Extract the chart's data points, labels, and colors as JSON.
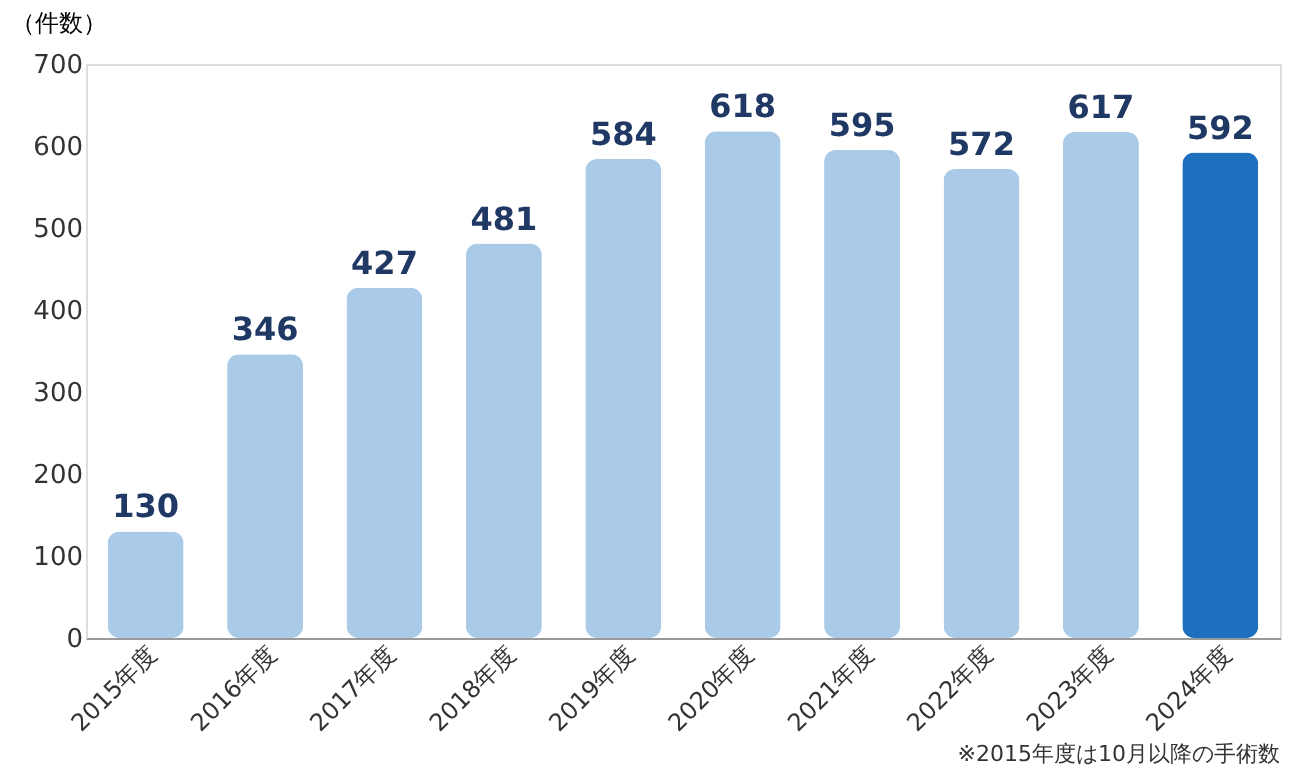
{
  "chart_data": {
    "type": "bar",
    "categories": [
      "2015年度",
      "2016年度",
      "2017年度",
      "2018年度",
      "2019年度",
      "2020年度",
      "2021年度",
      "2022年度",
      "2023年度",
      "2024年度"
    ],
    "values": [
      130,
      346,
      427,
      481,
      584,
      618,
      595,
      572,
      617,
      592
    ],
    "colors": [
      "#a9cbe8",
      "#a9cbe8",
      "#a9cbe8",
      "#a9cbe8",
      "#a9cbe8",
      "#a9cbe8",
      "#a9cbe8",
      "#a9cbe8",
      "#a9cbe8",
      "#1f6fbf"
    ],
    "ylabel": "（件数）",
    "ylim": [
      0,
      700
    ],
    "yticks": [
      0,
      100,
      200,
      300,
      400,
      500,
      600,
      700
    ],
    "data_labels": true,
    "grid": false,
    "annotations": [
      "※2015年度は10月以降の手術数"
    ]
  }
}
